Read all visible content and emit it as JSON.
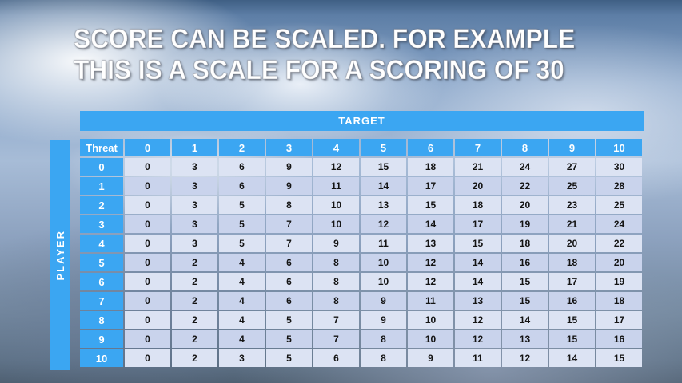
{
  "colors": {
    "accent": "#3BA6F2",
    "row_light": "#DCE3F3",
    "row_dark": "#C9D3EC",
    "cell_text": "#141414"
  },
  "title": {
    "line1": "SCORE CAN BE SCALED. FOR EXAMPLE",
    "line2": "THIS IS A SCALE FOR A SCORING OF 30"
  },
  "table": {
    "target_label": "TARGET",
    "player_label": "PLAYER",
    "corner_label": "Threat",
    "col_headers": [
      "0",
      "1",
      "2",
      "3",
      "4",
      "5",
      "6",
      "7",
      "8",
      "9",
      "10"
    ],
    "rows": [
      {
        "header": "0",
        "values": [
          0,
          3,
          6,
          9,
          12,
          15,
          18,
          21,
          24,
          27,
          30
        ]
      },
      {
        "header": "1",
        "values": [
          0,
          3,
          6,
          9,
          11,
          14,
          17,
          20,
          22,
          25,
          28
        ]
      },
      {
        "header": "2",
        "values": [
          0,
          3,
          5,
          8,
          10,
          13,
          15,
          18,
          20,
          23,
          25
        ]
      },
      {
        "header": "3",
        "values": [
          0,
          3,
          5,
          7,
          10,
          12,
          14,
          17,
          19,
          21,
          24
        ]
      },
      {
        "header": "4",
        "values": [
          0,
          3,
          5,
          7,
          9,
          11,
          13,
          15,
          18,
          20,
          22
        ]
      },
      {
        "header": "5",
        "values": [
          0,
          2,
          4,
          6,
          8,
          10,
          12,
          14,
          16,
          18,
          20
        ]
      },
      {
        "header": "6",
        "values": [
          0,
          2,
          4,
          6,
          8,
          10,
          12,
          14,
          15,
          17,
          19
        ]
      },
      {
        "header": "7",
        "values": [
          0,
          2,
          4,
          6,
          8,
          9,
          11,
          13,
          15,
          16,
          18
        ]
      },
      {
        "header": "8",
        "values": [
          0,
          2,
          4,
          5,
          7,
          9,
          10,
          12,
          14,
          15,
          17
        ]
      },
      {
        "header": "9",
        "values": [
          0,
          2,
          4,
          5,
          7,
          8,
          10,
          12,
          13,
          15,
          16
        ]
      },
      {
        "header": "10",
        "values": [
          0,
          2,
          3,
          5,
          6,
          8,
          9,
          11,
          12,
          14,
          15
        ]
      }
    ]
  }
}
